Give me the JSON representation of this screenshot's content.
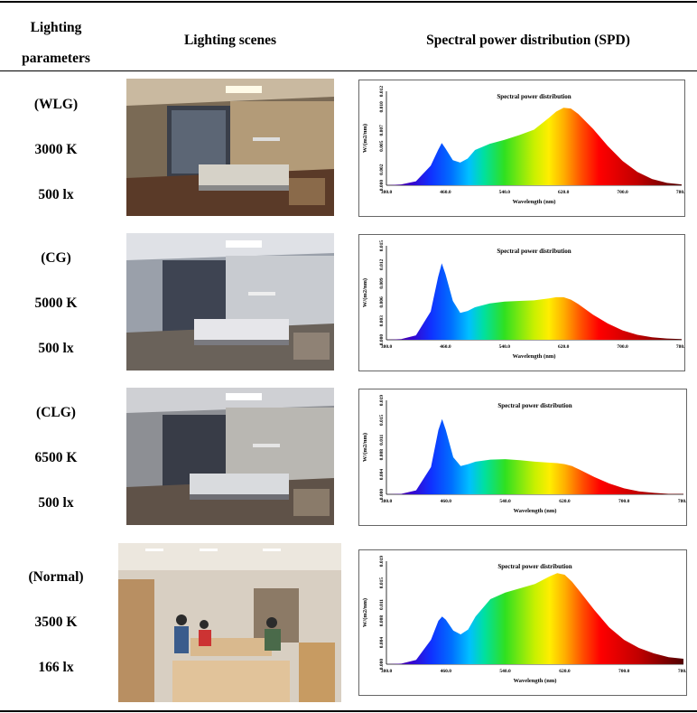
{
  "header": {
    "params_line1": "Lighting",
    "params_line2": "parameters",
    "scenes": "Lighting scenes",
    "spd": "Spectral power distribution (SPD)"
  },
  "rows": [
    {
      "name": "(WLG)",
      "cct": "3000 K",
      "lux": "500 lx",
      "chart_data": {
        "type": "area",
        "title": "Spectral power distribution",
        "xlabel": "Wavelength (nm)",
        "ylabel": "W/(m2/nm)",
        "xlim": [
          380,
          780
        ],
        "ylim": [
          0,
          0.012
        ],
        "xticks": [
          "380.0",
          "460.0",
          "540.0",
          "620.0",
          "700.0",
          "780.0"
        ],
        "yticks": [
          "0.000",
          "0.002",
          "0.005",
          "0.007",
          "0.010",
          "0.012"
        ],
        "x": [
          380,
          400,
          420,
          440,
          450,
          455,
          460,
          470,
          480,
          490,
          500,
          520,
          540,
          560,
          580,
          600,
          610,
          620,
          630,
          640,
          660,
          680,
          700,
          720,
          740,
          760,
          780
        ],
        "values": [
          0.0,
          0.0001,
          0.0005,
          0.0025,
          0.0045,
          0.0054,
          0.0047,
          0.0032,
          0.0029,
          0.0034,
          0.0045,
          0.0053,
          0.0058,
          0.0064,
          0.0071,
          0.0086,
          0.0094,
          0.0099,
          0.0098,
          0.0091,
          0.0072,
          0.005,
          0.0031,
          0.0017,
          0.0008,
          0.0003,
          0.0001
        ]
      }
    },
    {
      "name": "(CG)",
      "cct": "5000 K",
      "lux": "500 lx",
      "chart_data": {
        "type": "area",
        "title": "Spectral power distribution",
        "xlabel": "Wavelength (nm)",
        "ylabel": "W/(m2/nm)",
        "xlim": [
          380,
          780
        ],
        "ylim": [
          0,
          0.015
        ],
        "xticks": [
          "380.0",
          "460.0",
          "540.0",
          "620.0",
          "700.0",
          "780.0"
        ],
        "yticks": [
          "0.000",
          "0.003",
          "0.006",
          "0.009",
          "0.012",
          "0.015"
        ],
        "x": [
          380,
          400,
          420,
          440,
          450,
          455,
          460,
          470,
          480,
          490,
          500,
          520,
          540,
          560,
          580,
          600,
          610,
          620,
          630,
          640,
          660,
          680,
          700,
          720,
          740,
          760,
          780
        ],
        "values": [
          0.0,
          0.0001,
          0.0007,
          0.0045,
          0.01,
          0.0122,
          0.0105,
          0.0062,
          0.0043,
          0.0046,
          0.0052,
          0.0058,
          0.0061,
          0.0062,
          0.0063,
          0.0066,
          0.0068,
          0.0068,
          0.0064,
          0.0057,
          0.004,
          0.0026,
          0.0015,
          0.0008,
          0.0004,
          0.0002,
          0.0001
        ]
      }
    },
    {
      "name": "(CLG)",
      "cct": "6500 K",
      "lux": "500 lx",
      "chart_data": {
        "type": "area",
        "title": "Spectral power distribution",
        "xlabel": "Wavelength (nm)",
        "ylabel": "W/(m2/nm)",
        "xlim": [
          380,
          780
        ],
        "ylim": [
          0,
          0.019
        ],
        "xticks": [
          "380.0",
          "460.0",
          "540.0",
          "620.0",
          "700.0",
          "780.0"
        ],
        "yticks": [
          "0.000",
          "0.004",
          "0.008",
          "0.011",
          "0.015",
          "0.019"
        ],
        "x": [
          380,
          400,
          420,
          440,
          450,
          455,
          460,
          470,
          480,
          490,
          500,
          520,
          540,
          560,
          580,
          600,
          610,
          620,
          630,
          640,
          660,
          680,
          700,
          720,
          740,
          760,
          780
        ],
        "values": [
          0.0,
          0.0001,
          0.0008,
          0.0055,
          0.013,
          0.0152,
          0.013,
          0.0075,
          0.0057,
          0.0061,
          0.0066,
          0.007,
          0.0071,
          0.0069,
          0.0066,
          0.0064,
          0.0063,
          0.0061,
          0.0057,
          0.005,
          0.0035,
          0.0022,
          0.0012,
          0.0006,
          0.0003,
          0.0001,
          0.0001
        ]
      }
    },
    {
      "name": "(Normal)",
      "cct": "3500 K",
      "lux": "166 lx",
      "chart_data": {
        "type": "area",
        "title": "Spectral power distribution",
        "xlabel": "Wavelength (nm)",
        "ylabel": "W/(m2/nm)",
        "xlim": [
          380,
          780
        ],
        "ylim": [
          0,
          0.019
        ],
        "xticks": [
          "380.0",
          "460.0",
          "540.0",
          "620.0",
          "700.0",
          "780.0"
        ],
        "yticks": [
          "0.000",
          "0.004",
          "0.008",
          "0.011",
          "0.015",
          "0.019"
        ],
        "x": [
          380,
          400,
          420,
          440,
          450,
          455,
          460,
          470,
          480,
          490,
          500,
          520,
          540,
          560,
          580,
          600,
          610,
          620,
          630,
          640,
          660,
          680,
          700,
          720,
          740,
          760,
          780
        ],
        "values": [
          0.0,
          0.0001,
          0.0008,
          0.0045,
          0.008,
          0.0088,
          0.0082,
          0.0062,
          0.0055,
          0.0064,
          0.0088,
          0.012,
          0.0132,
          0.014,
          0.0148,
          0.0162,
          0.0168,
          0.0165,
          0.0152,
          0.0135,
          0.01,
          0.0068,
          0.0045,
          0.003,
          0.002,
          0.0013,
          0.001
        ]
      }
    }
  ]
}
